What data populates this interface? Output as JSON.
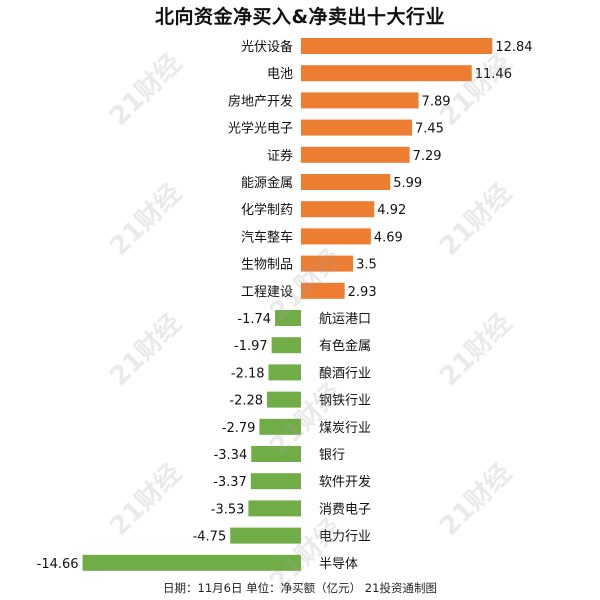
{
  "title": "北向资金净买入&净卖出十大行业",
  "footnote": "日期：11月6日 单位：净买额（亿元） 21投资通制图",
  "watermark_text": "21财经",
  "colors": {
    "positive": "#ED7D31",
    "negative": "#70AD47"
  },
  "chart_data": {
    "type": "bar",
    "orientation": "horizontal",
    "title": "北向资金净买入&净卖出十大行业",
    "categories": [
      "光伏设备",
      "电池",
      "房地产开发",
      "光学光电子",
      "证券",
      "能源金属",
      "化学制药",
      "汽车整车",
      "生物制品",
      "工程建设",
      "航运港口",
      "有色金属",
      "酿酒行业",
      "钢铁行业",
      "煤炭行业",
      "银行",
      "软件开发",
      "消费电子",
      "电力行业",
      "半导体"
    ],
    "values": [
      12.84,
      11.46,
      7.89,
      7.45,
      7.29,
      5.99,
      4.92,
      4.69,
      3.5,
      2.93,
      -1.74,
      -1.97,
      -2.18,
      -2.28,
      -2.79,
      -3.34,
      -3.37,
      -3.53,
      -4.75,
      -14.66
    ],
    "value_labels": [
      "12.84",
      "11.46",
      "7.89",
      "7.45",
      "7.29",
      "5.99",
      "4.92",
      "4.69",
      "3.5",
      "2.93",
      "-1.74",
      "-1.97",
      "-2.18",
      "-2.28",
      "-2.79",
      "-3.34",
      "-3.37",
      "-3.53",
      "-4.75",
      "-14.66"
    ],
    "unit": "净买额（亿元）",
    "xlim": [
      -14.66,
      12.84
    ],
    "grid": false,
    "legend": "none"
  }
}
